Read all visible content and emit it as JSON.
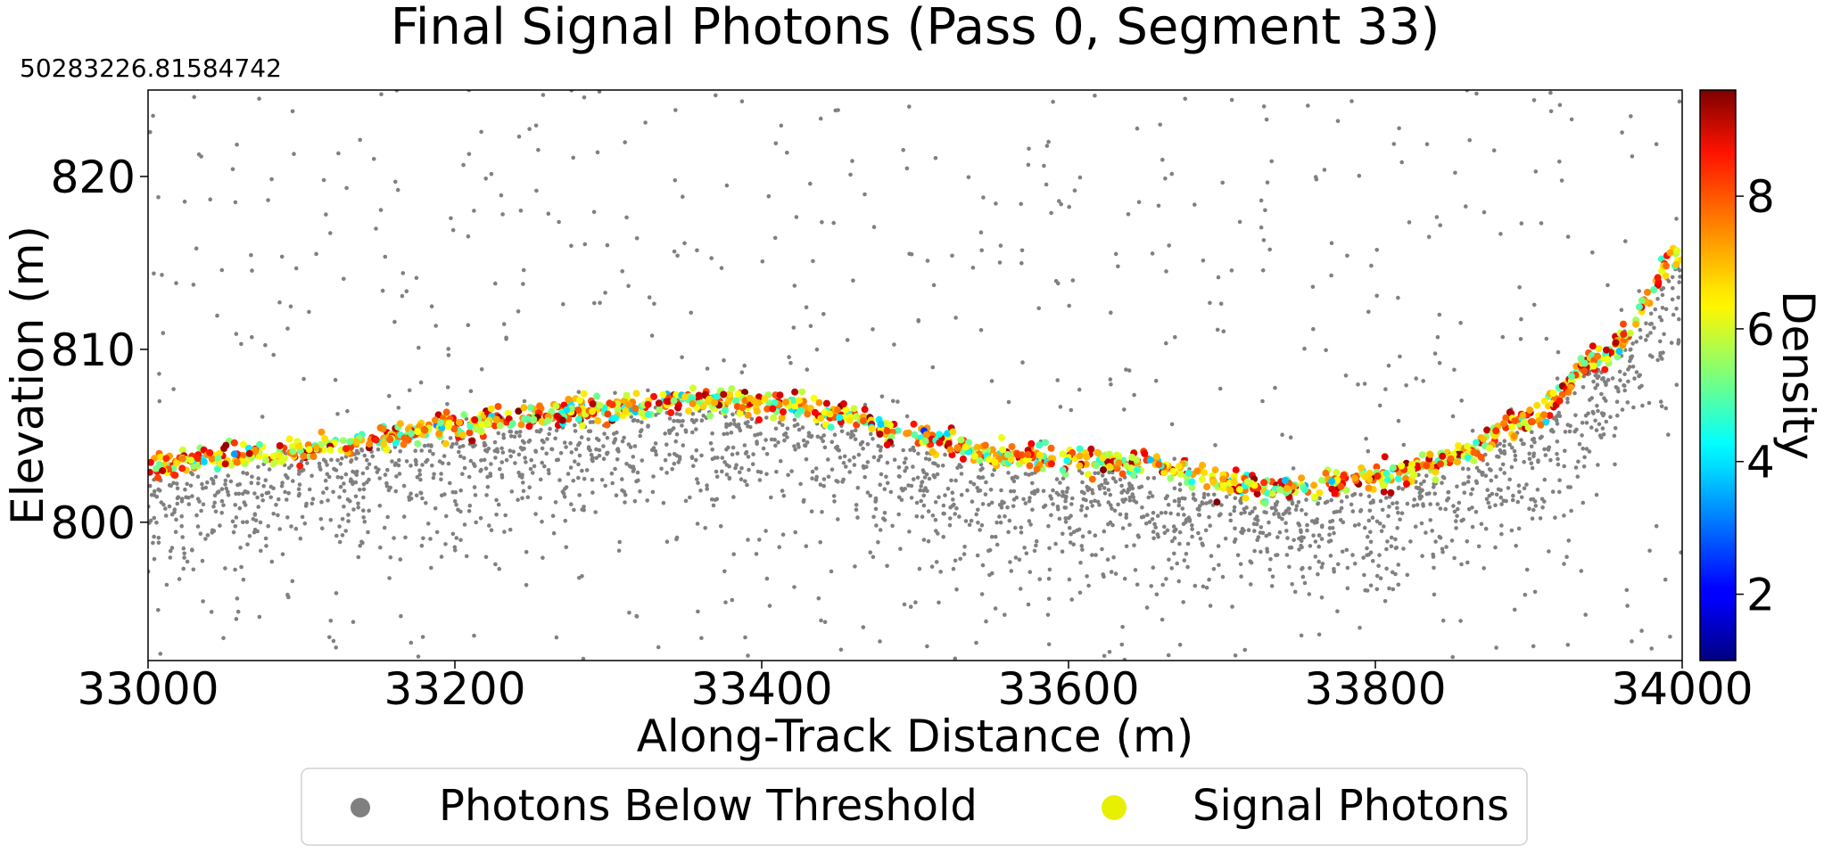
{
  "chart_data": {
    "type": "scatter",
    "title": "Final Signal Photons (Pass 0, Segment 33)",
    "offset_text": "50283226.81584742",
    "xlabel": "Along-Track Distance (m)",
    "ylabel": "Elevation (m)",
    "xlim": [
      33000,
      34000
    ],
    "ylim": [
      792,
      825
    ],
    "xticks": [
      33000,
      33200,
      33400,
      33600,
      33800,
      34000
    ],
    "yticks": [
      800,
      810,
      820
    ],
    "grid": false,
    "legend_position": "bottom-center",
    "colorbar": {
      "label": "Density",
      "range": [
        1,
        9.6
      ],
      "ticks": [
        2,
        4,
        6,
        8
      ],
      "colormap": "jet"
    },
    "surface_profile": [
      [
        33000,
        803.2
      ],
      [
        33050,
        803.7
      ],
      [
        33100,
        804.2
      ],
      [
        33150,
        804.9
      ],
      [
        33200,
        805.6
      ],
      [
        33250,
        806.1
      ],
      [
        33300,
        806.6
      ],
      [
        33350,
        807.1
      ],
      [
        33400,
        806.9
      ],
      [
        33450,
        806.2
      ],
      [
        33500,
        805.0
      ],
      [
        33550,
        804.0
      ],
      [
        33600,
        803.6
      ],
      [
        33650,
        803.4
      ],
      [
        33700,
        802.3
      ],
      [
        33730,
        801.9
      ],
      [
        33760,
        802.1
      ],
      [
        33800,
        802.6
      ],
      [
        33850,
        803.6
      ],
      [
        33900,
        806.0
      ],
      [
        33950,
        809.8
      ],
      [
        34000,
        815.5
      ]
    ],
    "series": [
      {
        "name": "Photons Below Threshold",
        "color": "#808080",
        "marker": "circle",
        "approx_count": 2600,
        "distribution": "dense band 0-6 m below the surface, sparse background noise across the full elevation range"
      },
      {
        "name": "Signal Photons",
        "color": "#e6f000",
        "marker": "circle",
        "approx_count": 1400,
        "distribution": "narrow band along the surface profile, colored by density (mostly 5-9)"
      }
    ]
  }
}
